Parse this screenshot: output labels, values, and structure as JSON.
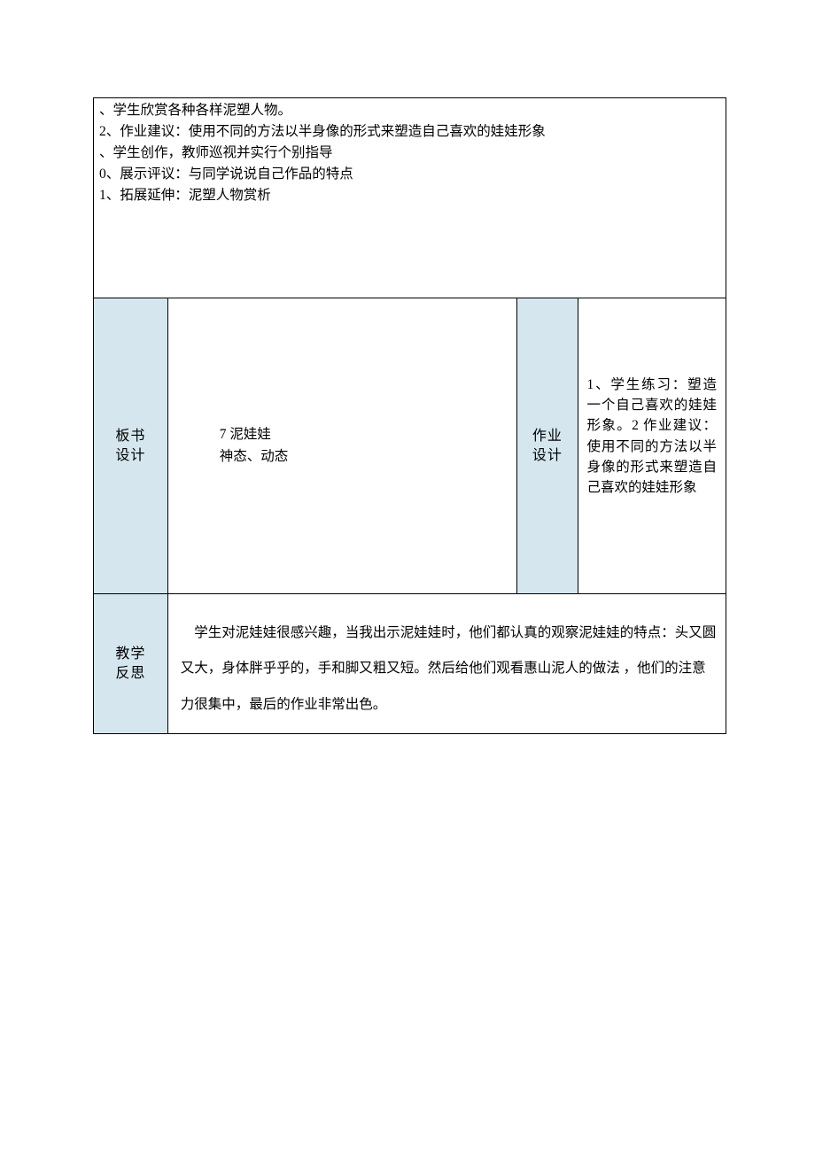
{
  "top": {
    "line1": "、学生欣赏各种各样泥塑人物。",
    "line2": "2、作业建议：使用不同的方法以半身像的形式来塑造自己喜欢的娃娃形象",
    "line3": "、学生创作，教师巡视并实行个别指导",
    "line4": "0、展示评议：与同学说说自己作品的特点",
    "line5": "1、拓展延伸：泥塑人物赏析"
  },
  "labels": {
    "board1": "板书",
    "board2": "设计",
    "homework1": "作业",
    "homework2": "设计",
    "reflect1": "教学",
    "reflect2": "反思"
  },
  "board": {
    "title": "7 泥娃娃",
    "subtitle": "神态、动态"
  },
  "homework": {
    "text": "1、学生练习：塑造一个自己喜欢的娃娃形象。2 作业建议：使用不同的方法以半身像的形式来塑造自己喜欢的娃娃形象"
  },
  "reflection": {
    "text": "学生对泥娃娃很感兴趣，当我出示泥娃娃时，他们都认真的观察泥娃娃的特点：头又圆又大，身体胖乎乎的，手和脚又粗又短。然后给他们观看惠山泥人的做法 ，他们的注意力很集中，最后的作业非常出色。"
  },
  "colors": {
    "header_bg": "#d5e6ee",
    "border": "#000000",
    "text": "#000000",
    "page_bg": "#ffffff"
  },
  "typography": {
    "body_fontsize": 15.5,
    "label_fontsize": 16,
    "font_family": "SimSun"
  }
}
